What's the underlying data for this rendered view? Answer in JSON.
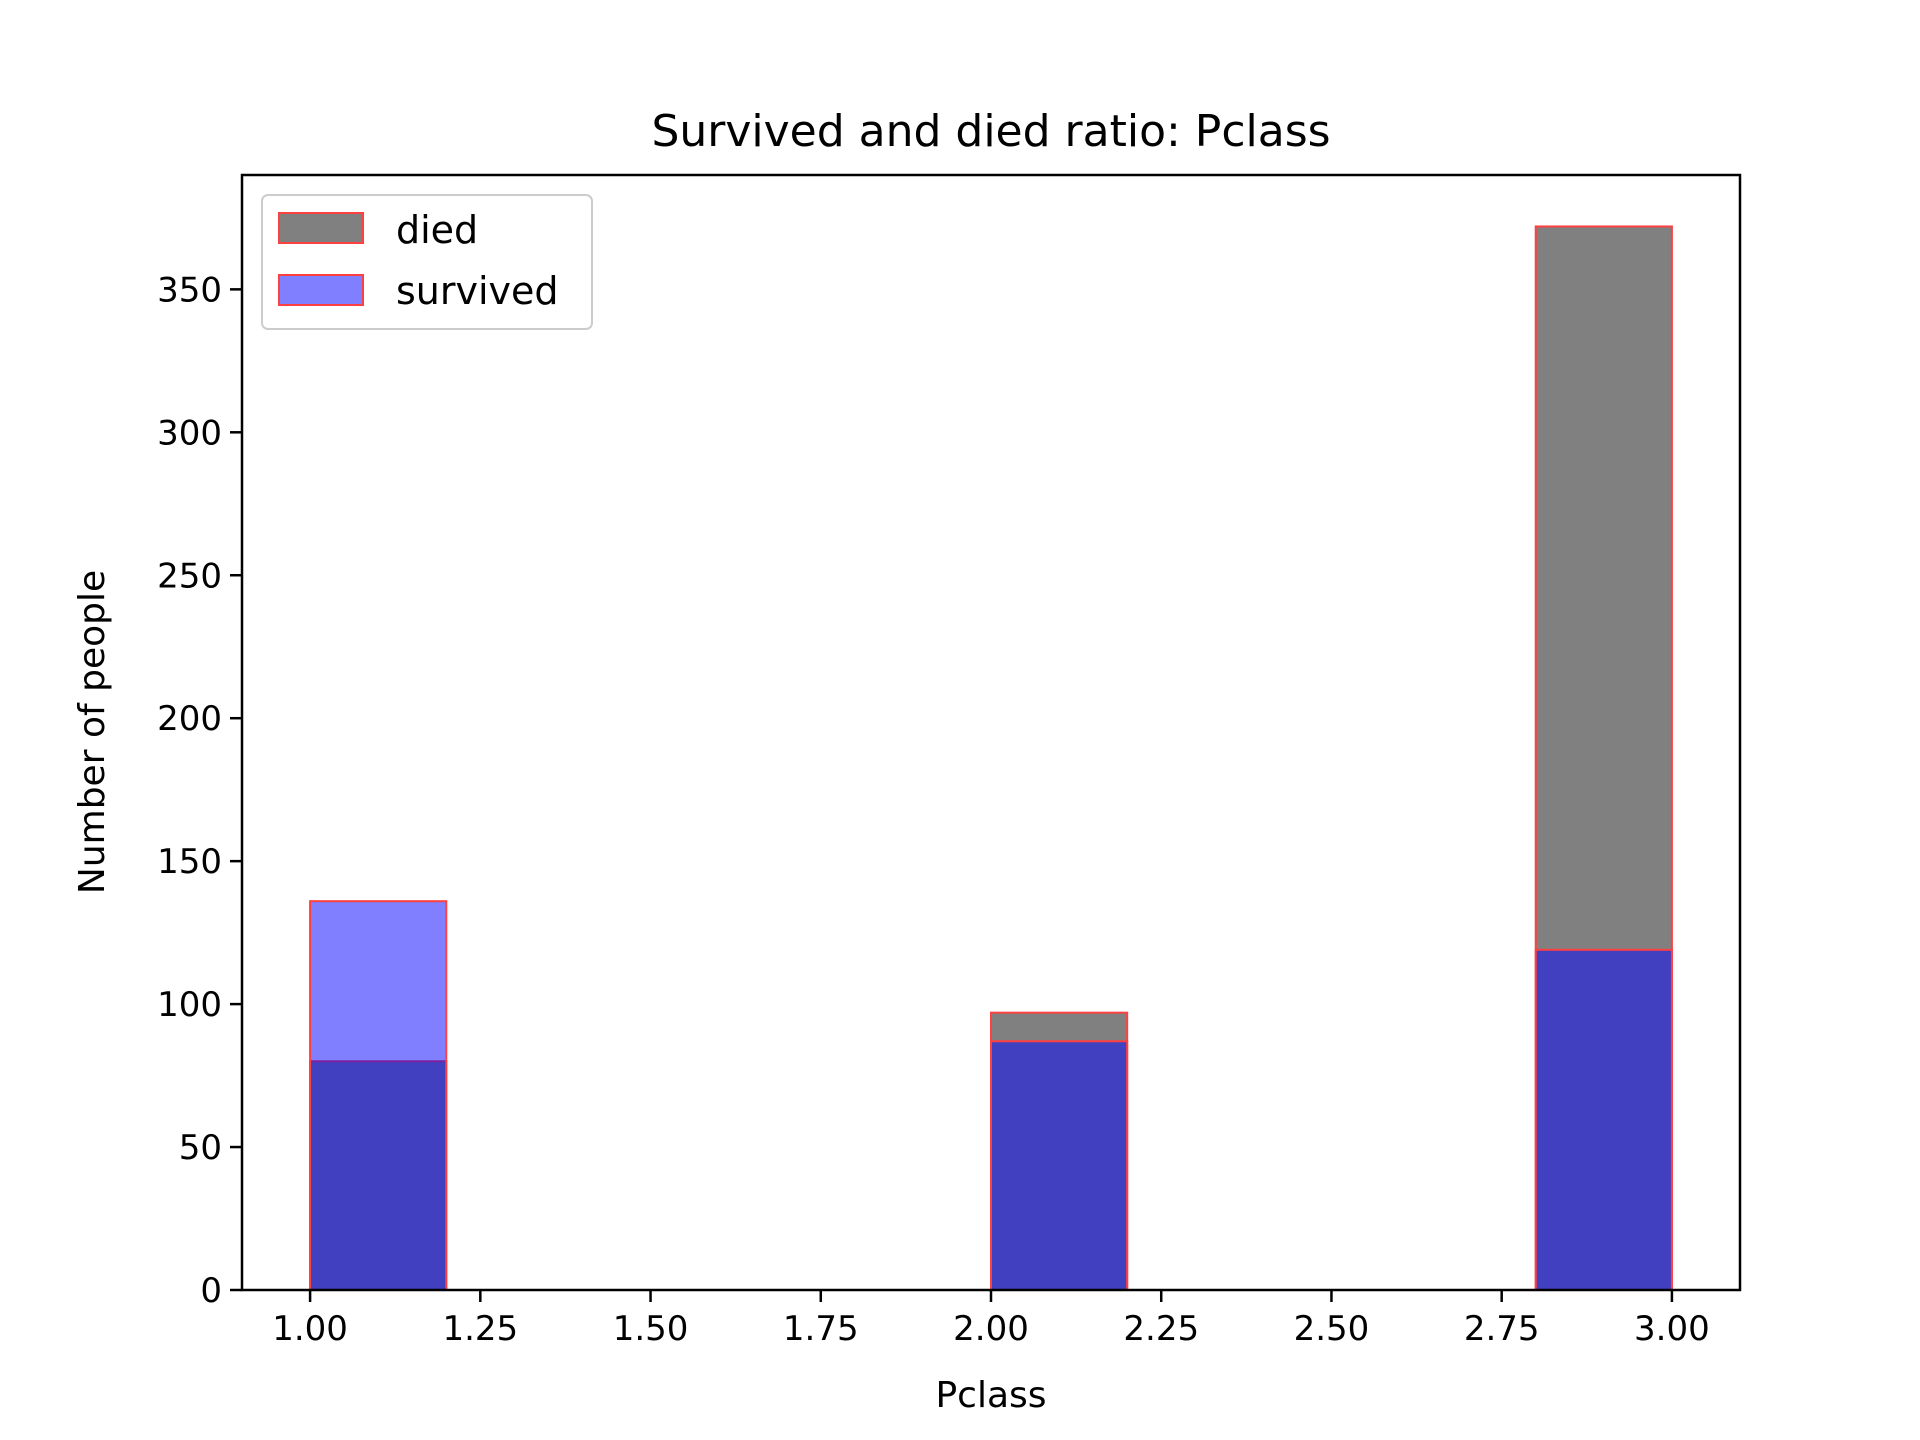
{
  "chart_data": {
    "type": "bar",
    "title": "Survived and died ratio:  Pclass",
    "xlabel": "Pclass",
    "ylabel": "Number of people",
    "xlim": [
      0.9,
      3.1
    ],
    "ylim": [
      0,
      390
    ],
    "xticks": [
      "1.00",
      "1.25",
      "1.50",
      "1.75",
      "2.00",
      "2.25",
      "2.50",
      "2.75",
      "3.00"
    ],
    "yticks": [
      "0",
      "50",
      "100",
      "150",
      "200",
      "250",
      "300",
      "350"
    ],
    "bin_edges": [
      1.0,
      1.2,
      1.4,
      1.6,
      1.8,
      2.0,
      2.2,
      2.4,
      2.6,
      2.8,
      3.0
    ],
    "series": [
      {
        "name": "died",
        "color": "#808080",
        "alpha": 1.0,
        "edgecolor": "#ff4040",
        "values": [
          80,
          0,
          0,
          0,
          0,
          97,
          0,
          0,
          0,
          372
        ]
      },
      {
        "name": "survived",
        "color": "#0000ff",
        "alpha": 0.5,
        "edgecolor": "#ff4040",
        "values": [
          136,
          0,
          0,
          0,
          0,
          87,
          0,
          0,
          0,
          119
        ]
      }
    ],
    "legend": "top-left",
    "grid": false
  }
}
